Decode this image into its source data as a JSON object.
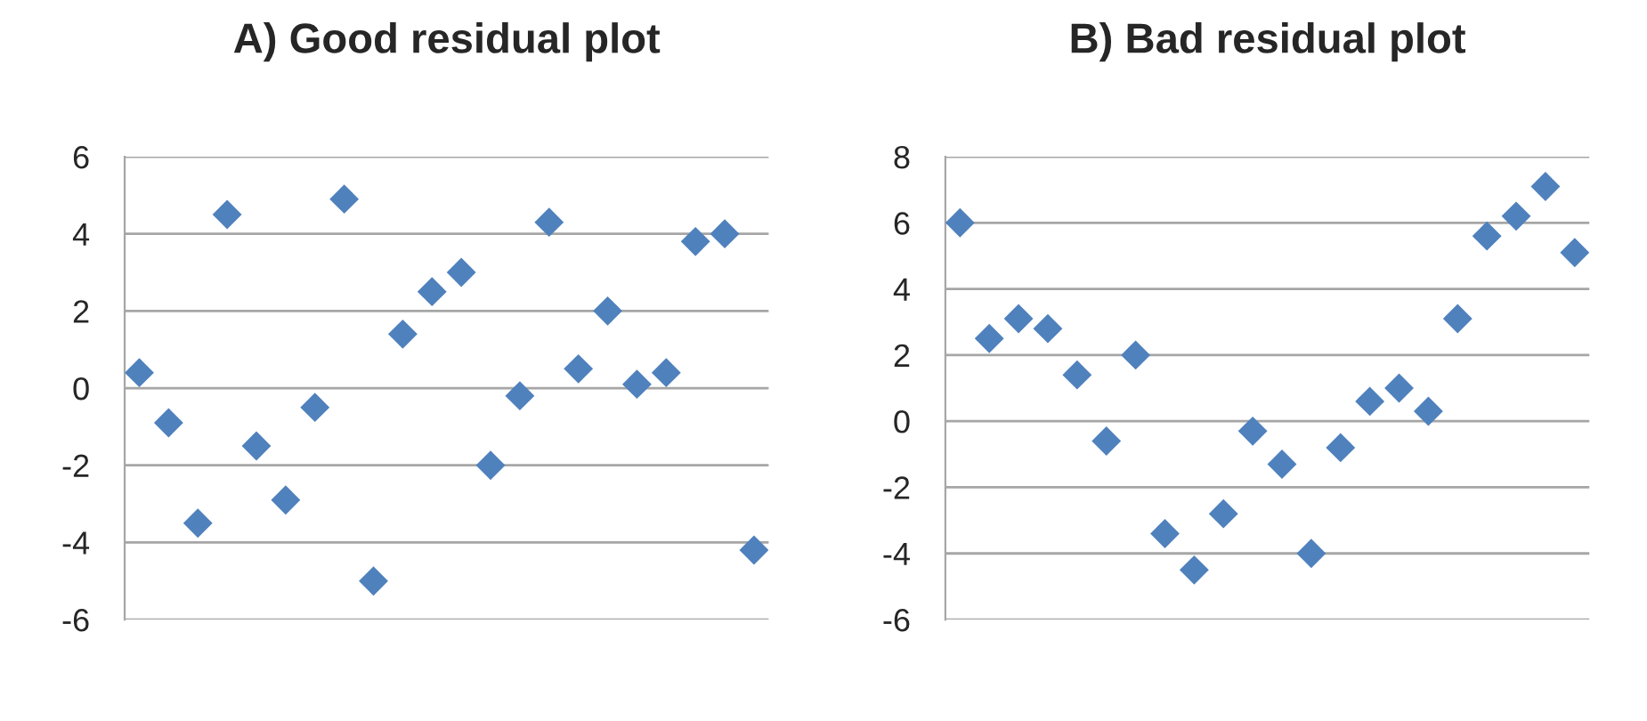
{
  "chart_data": [
    {
      "type": "scatter",
      "title": "A) Good residual plot",
      "categories": [
        null,
        null,
        null,
        null,
        null,
        null,
        null,
        null,
        null,
        null,
        null,
        null,
        null,
        null,
        null,
        null,
        null,
        null,
        null,
        null,
        null,
        null
      ],
      "series": [
        {
          "color": "#4f81bd",
          "values": [
            0.4,
            -0.9,
            -3.5,
            4.5,
            -1.5,
            -2.9,
            -0.5,
            4.9,
            -5.0,
            1.4,
            2.5,
            3.0,
            -2.0,
            -0.2,
            4.3,
            0.5,
            2.0,
            0.1,
            0.4,
            3.8,
            4.0,
            -4.2
          ]
        }
      ],
      "ylim": [
        -6,
        6
      ],
      "yticks": [
        -6,
        -4,
        -2,
        0,
        2,
        4,
        6
      ],
      "grid": "y",
      "marker": "diamond",
      "legend": false
    },
    {
      "type": "scatter",
      "title": "B) Bad residual plot",
      "categories": [
        null,
        null,
        null,
        null,
        null,
        null,
        null,
        null,
        null,
        null,
        null,
        null,
        null,
        null,
        null,
        null,
        null,
        null,
        null,
        null,
        null,
        null
      ],
      "series": [
        {
          "color": "#4f81bd",
          "values": [
            6.0,
            2.5,
            3.1,
            2.8,
            1.4,
            -0.6,
            2.0,
            -3.4,
            -4.5,
            -2.8,
            -0.3,
            -1.3,
            -4.0,
            -0.8,
            0.6,
            1.0,
            0.3,
            3.1,
            5.6,
            6.2,
            7.1,
            5.1
          ]
        }
      ],
      "ylim": [
        -6,
        8
      ],
      "yticks": [
        -6,
        -4,
        -2,
        0,
        2,
        4,
        6,
        8
      ],
      "grid": "y",
      "marker": "diamond",
      "legend": false
    }
  ]
}
